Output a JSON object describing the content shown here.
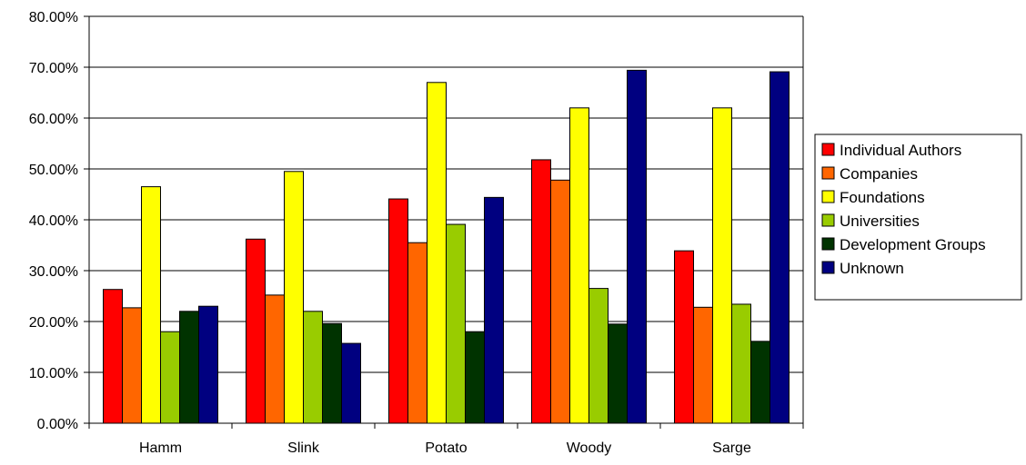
{
  "chart_data": {
    "type": "bar",
    "categories": [
      "Hamm",
      "Slink",
      "Potato",
      "Woody",
      "Sarge"
    ],
    "series": [
      {
        "name": "Individual Authors",
        "color": "#ff0000",
        "values": [
          26.3,
          36.2,
          44.1,
          51.8,
          33.9
        ]
      },
      {
        "name": "Companies",
        "color": "#ff6600",
        "values": [
          22.7,
          25.2,
          35.5,
          47.8,
          22.8
        ]
      },
      {
        "name": "Foundations",
        "color": "#ffff00",
        "values": [
          46.5,
          49.5,
          67.0,
          62.0,
          62.0
        ]
      },
      {
        "name": "Universities",
        "color": "#99cc00",
        "values": [
          18.0,
          22.0,
          39.1,
          26.5,
          23.4
        ]
      },
      {
        "name": "Development Groups",
        "color": "#003300",
        "values": [
          22.0,
          19.6,
          18.0,
          19.5,
          16.1
        ]
      },
      {
        "name": "Unknown",
        "color": "#000080",
        "values": [
          23.0,
          15.7,
          44.4,
          69.4,
          69.1
        ]
      }
    ],
    "ylim": [
      0,
      80
    ],
    "ytick_labels": [
      "0.00%",
      "10.00%",
      "20.00%",
      "30.00%",
      "40.00%",
      "50.00%",
      "60.00%",
      "70.00%",
      "80.00%"
    ],
    "grid": true,
    "legend_position": "right",
    "title": "",
    "xlabel": "",
    "ylabel": ""
  }
}
